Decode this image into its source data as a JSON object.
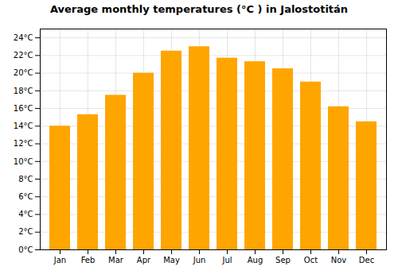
{
  "chart_data": {
    "type": "bar",
    "title": "Average monthly temperatures (°C ) in Jalostotitán",
    "categories": [
      "Jan",
      "Feb",
      "Mar",
      "Apr",
      "May",
      "Jun",
      "Jul",
      "Aug",
      "Sep",
      "Oct",
      "Nov",
      "Dec"
    ],
    "values": [
      14.0,
      15.3,
      17.5,
      20.0,
      22.5,
      23.0,
      21.7,
      21.3,
      20.5,
      19.0,
      16.2,
      14.5
    ],
    "color": "#FFA500",
    "ylim": [
      0,
      25
    ],
    "yticks": [
      {
        "value": 0,
        "label": "0°C"
      },
      {
        "value": 2,
        "label": "2°C"
      },
      {
        "value": 4,
        "label": "4°C"
      },
      {
        "value": 6,
        "label": "6°C"
      },
      {
        "value": 8,
        "label": "8°C"
      },
      {
        "value": 10,
        "label": "10°C"
      },
      {
        "value": 12,
        "label": "12°C"
      },
      {
        "value": 14,
        "label": "14°C"
      },
      {
        "value": 16,
        "label": "16°C"
      },
      {
        "value": 18,
        "label": "18°C"
      },
      {
        "value": 20,
        "label": "20°C"
      },
      {
        "value": 22,
        "label": "22°C"
      },
      {
        "value": 24,
        "label": "24°C"
      }
    ],
    "grid": true
  }
}
